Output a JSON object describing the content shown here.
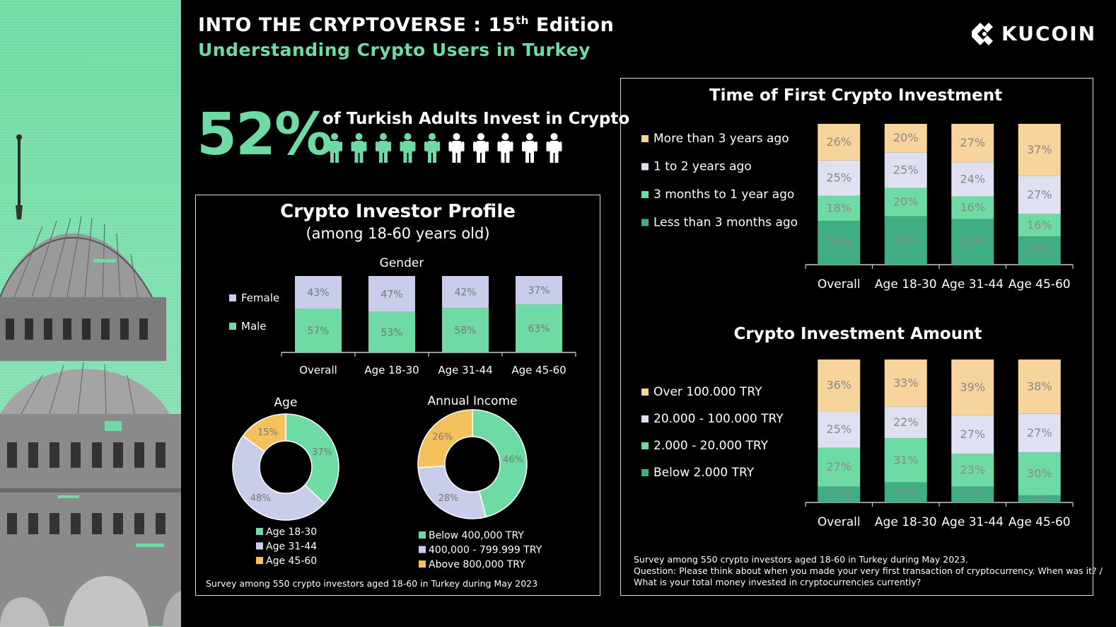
{
  "header": {
    "title_main": "INTO THE CRYPTOVERSE : 15",
    "title_sup": "th",
    "title_end": " Edition",
    "subtitle": "Understanding Crypto Users in Turkey",
    "logo_text": "KUCOIN"
  },
  "headline": {
    "percent": "52%",
    "text": "of Turkish Adults Invest in Crypto",
    "people_total": 10,
    "people_highlighted": 5
  },
  "colors": {
    "green_light": "#6fdba4",
    "green_dark": "#3fae82",
    "lavender": "#c9cdea",
    "yellow": "#f5c15c",
    "peach": "#f6d49c",
    "white": "#ffffff"
  },
  "profile": {
    "title": "Crypto Investor Profile",
    "subtitle": "(among 18-60 years old)",
    "footnote": "Survey among 550 crypto investors aged 18-60 in Turkey during May 2023"
  },
  "timing": {
    "footnote_lines": [
      "Survey among 550 crypto investors aged 18-60 in Turkey  during May 2023.",
      "Question: Please think about when you made your very first transaction of cryptocurrency. When was it? /",
      "What is your total money invested in cryptocurrencies currently?"
    ]
  },
  "chart_data": [
    {
      "id": "gender",
      "type": "bar",
      "stacked": true,
      "title": "Gender",
      "categories": [
        "Overall",
        "Age 18-30",
        "Age 31-44",
        "Age 45-60"
      ],
      "series": [
        {
          "name": "Male",
          "values": [
            57,
            53,
            58,
            63
          ],
          "labels": [
            "57%",
            "53%",
            "58%",
            "63%"
          ],
          "color": "#6fdba4"
        },
        {
          "name": "Female",
          "values": [
            43,
            47,
            42,
            37
          ],
          "labels": [
            "43%",
            "47%",
            "42%",
            "37%"
          ],
          "color": "#c9cdea"
        }
      ],
      "legend_order": [
        "Female",
        "Male"
      ],
      "legend": "left"
    },
    {
      "id": "age",
      "type": "pie",
      "donut": true,
      "title": "Age",
      "slices": [
        {
          "name": "Age 18-30",
          "value": 37,
          "label": "37%",
          "color": "#6fdba4"
        },
        {
          "name": "Age 31-44",
          "value": 48,
          "label": "48%",
          "color": "#c9cdea"
        },
        {
          "name": "Age 45-60",
          "value": 15,
          "label": "15%",
          "color": "#f5c15c"
        }
      ],
      "legend": "bottom"
    },
    {
      "id": "income",
      "type": "pie",
      "donut": true,
      "title": "Annual Income",
      "slices": [
        {
          "name": "Below 400,000 TRY",
          "value": 46,
          "label": "46%",
          "color": "#6fdba4"
        },
        {
          "name": "400,000 - 799.999 TRY",
          "value": 28,
          "label": "28%",
          "color": "#c9cdea"
        },
        {
          "name": "Above 800,000 TRY",
          "value": 26,
          "label": "26%",
          "color": "#f5c15c"
        }
      ],
      "legend": "bottom"
    },
    {
      "id": "first_investment",
      "type": "bar",
      "stacked": true,
      "title": "Time of First Crypto Investment",
      "categories": [
        "Overall",
        "Age 18-30",
        "Age 31-44",
        "Age 45-60"
      ],
      "series": [
        {
          "name": "Less than 3 months ago",
          "values": [
            31,
            34,
            32,
            20
          ],
          "labels": [
            "31%",
            "34%",
            "32%",
            "20%"
          ],
          "color": "#3fae82"
        },
        {
          "name": "3 months to 1 year ago",
          "values": [
            18,
            20,
            16,
            16
          ],
          "labels": [
            "18%",
            "20%",
            "16%",
            "16%"
          ],
          "color": "#6fdba4"
        },
        {
          "name": "1 to 2 years ago",
          "values": [
            25,
            25,
            24,
            27
          ],
          "labels": [
            "25%",
            "25%",
            "24%",
            "27%"
          ],
          "color": "#dfe1f2"
        },
        {
          "name": "More than 3 years ago",
          "values": [
            26,
            20,
            27,
            37
          ],
          "labels": [
            "26%",
            "20%",
            "27%",
            "37%"
          ],
          "color": "#f6d49c"
        }
      ],
      "legend_order": [
        "More than 3 years ago",
        "1 to 2 years ago",
        "3 months to 1 year ago",
        "Less than 3 months ago"
      ],
      "legend": "left"
    },
    {
      "id": "amount",
      "type": "bar",
      "stacked": true,
      "title": "Crypto Investment Amount",
      "categories": [
        "Overall",
        "Age 18-30",
        "Age 31-44",
        "Age 45-60"
      ],
      "series": [
        {
          "name": "Below 2.000 TRY",
          "values": [
            11,
            14,
            11,
            5
          ],
          "labels": [
            "11%",
            "14%",
            "11%",
            "5%"
          ],
          "color": "#3fae82"
        },
        {
          "name": "2.000 - 20.000 TRY",
          "values": [
            27,
            31,
            23,
            30
          ],
          "labels": [
            "27%",
            "31%",
            "23%",
            "30%"
          ],
          "color": "#6fdba4"
        },
        {
          "name": "20.000 - 100.000 TRY",
          "values": [
            25,
            22,
            27,
            27
          ],
          "labels": [
            "25%",
            "22%",
            "27%",
            "27%"
          ],
          "color": "#dfe1f2"
        },
        {
          "name": "Over 100.000 TRY",
          "values": [
            36,
            33,
            39,
            38
          ],
          "labels": [
            "36%",
            "33%",
            "39%",
            "38%"
          ],
          "color": "#f6d49c"
        }
      ],
      "legend_order": [
        "Over 100.000 TRY",
        "20.000 - 100.000 TRY",
        "2.000 - 20.000 TRY",
        "Below 2.000 TRY"
      ],
      "legend": "left"
    }
  ]
}
